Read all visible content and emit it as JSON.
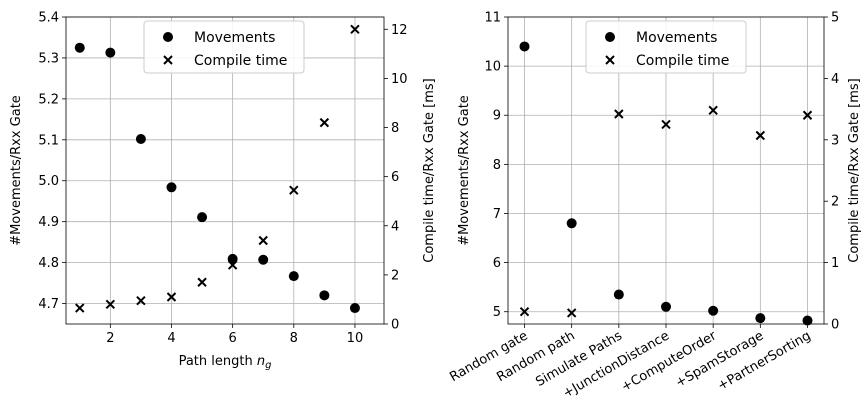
{
  "chart_data": [
    {
      "type": "scatter",
      "x_type": "numeric",
      "xlabel_main": "Path length ",
      "xlabel_sym": "n",
      "xlabel_sub": "g",
      "ylabel_left": "#Movements/Rxx Gate",
      "ylabel_right": "Compile time/Rxx Gate [ms]",
      "xlim": [
        0.55,
        10.95
      ],
      "ylim_left": [
        4.65,
        5.4
      ],
      "ylim_right": [
        0,
        12.5
      ],
      "xticks": [
        2,
        4,
        6,
        8,
        10
      ],
      "yticks_left": [
        4.7,
        4.8,
        4.9,
        5.0,
        5.1,
        5.2,
        5.3,
        5.4
      ],
      "yticks_right": [
        0,
        2,
        4,
        6,
        8,
        10,
        12
      ],
      "grid": true,
      "legend_position": "top-center",
      "series": [
        {
          "name": "Movements",
          "marker": "circle",
          "axis": "left",
          "x": [
            1,
            2,
            3,
            4,
            5,
            6,
            7,
            8,
            9,
            10
          ],
          "values": [
            5.325,
            5.313,
            5.102,
            4.984,
            4.911,
            4.809,
            4.807,
            4.767,
            4.72,
            4.689
          ]
        },
        {
          "name": "Compile time",
          "marker": "x",
          "axis": "right",
          "x": [
            1,
            2,
            3,
            4,
            5,
            6,
            7,
            8,
            9,
            10
          ],
          "values": [
            0.65,
            0.8,
            0.95,
            1.1,
            1.7,
            2.4,
            3.4,
            5.45,
            8.2,
            12.0
          ]
        }
      ]
    },
    {
      "type": "scatter",
      "x_type": "categorical",
      "categories": [
        "Random gate",
        "Random path",
        "Simulate Paths",
        "+JunctionDistance",
        "+ComputeOrder",
        "+SpamStorage",
        "+PartnerSorting"
      ],
      "ylabel_left": "#Movements/Rxx Gate",
      "ylabel_right": "Compile time/Rxx Gate [ms]",
      "ylim_left": [
        4.75,
        11
      ],
      "ylim_right": [
        0,
        5
      ],
      "yticks_left": [
        5,
        6,
        7,
        8,
        9,
        10,
        11
      ],
      "yticks_right": [
        0,
        1,
        2,
        3,
        4,
        5
      ],
      "grid": true,
      "legend_position": "top-center",
      "series": [
        {
          "name": "Movements",
          "marker": "circle",
          "axis": "left",
          "values": [
            10.4,
            6.8,
            5.35,
            5.1,
            5.02,
            4.87,
            4.82
          ]
        },
        {
          "name": "Compile time",
          "marker": "x",
          "axis": "right",
          "values": [
            0.2,
            0.18,
            3.42,
            3.25,
            3.48,
            3.07,
            3.4
          ]
        }
      ]
    }
  ]
}
